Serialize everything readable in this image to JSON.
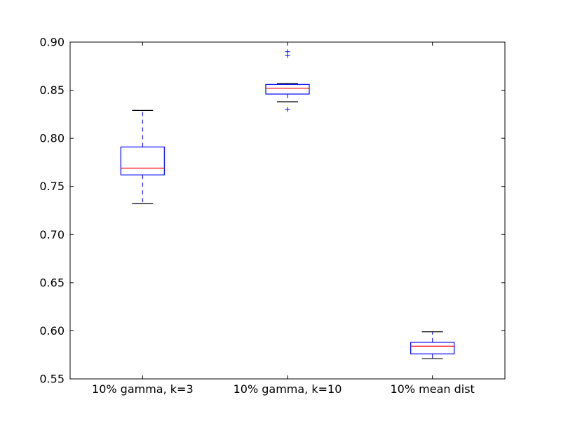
{
  "chart_data": {
    "type": "boxplot",
    "title": "",
    "xlabel": "",
    "ylabel": "",
    "ylim": [
      0.55,
      0.9
    ],
    "yticks": [
      "0.55",
      "0.60",
      "0.65",
      "0.70",
      "0.75",
      "0.80",
      "0.85",
      "0.90"
    ],
    "grid": false,
    "legend": "none",
    "categories": [
      "10% gamma, k=3",
      "10% gamma, k=10",
      "10% mean dist"
    ],
    "boxes": [
      {
        "whisker_low": 0.732,
        "q1": 0.762,
        "median": 0.769,
        "q3": 0.791,
        "whisker_high": 0.829,
        "outliers": []
      },
      {
        "whisker_low": 0.838,
        "q1": 0.846,
        "median": 0.852,
        "q3": 0.856,
        "whisker_high": 0.857,
        "outliers": [
          0.83,
          0.886,
          0.89
        ]
      },
      {
        "whisker_low": 0.571,
        "q1": 0.576,
        "median": 0.584,
        "q3": 0.588,
        "whisker_high": 0.599,
        "outliers": []
      }
    ],
    "colors": {
      "box": "#0000ff",
      "whisker": "#0000ff",
      "cap": "#000000",
      "median": "#ff0000",
      "flier": "#0000ff",
      "axes": "#000000"
    }
  }
}
